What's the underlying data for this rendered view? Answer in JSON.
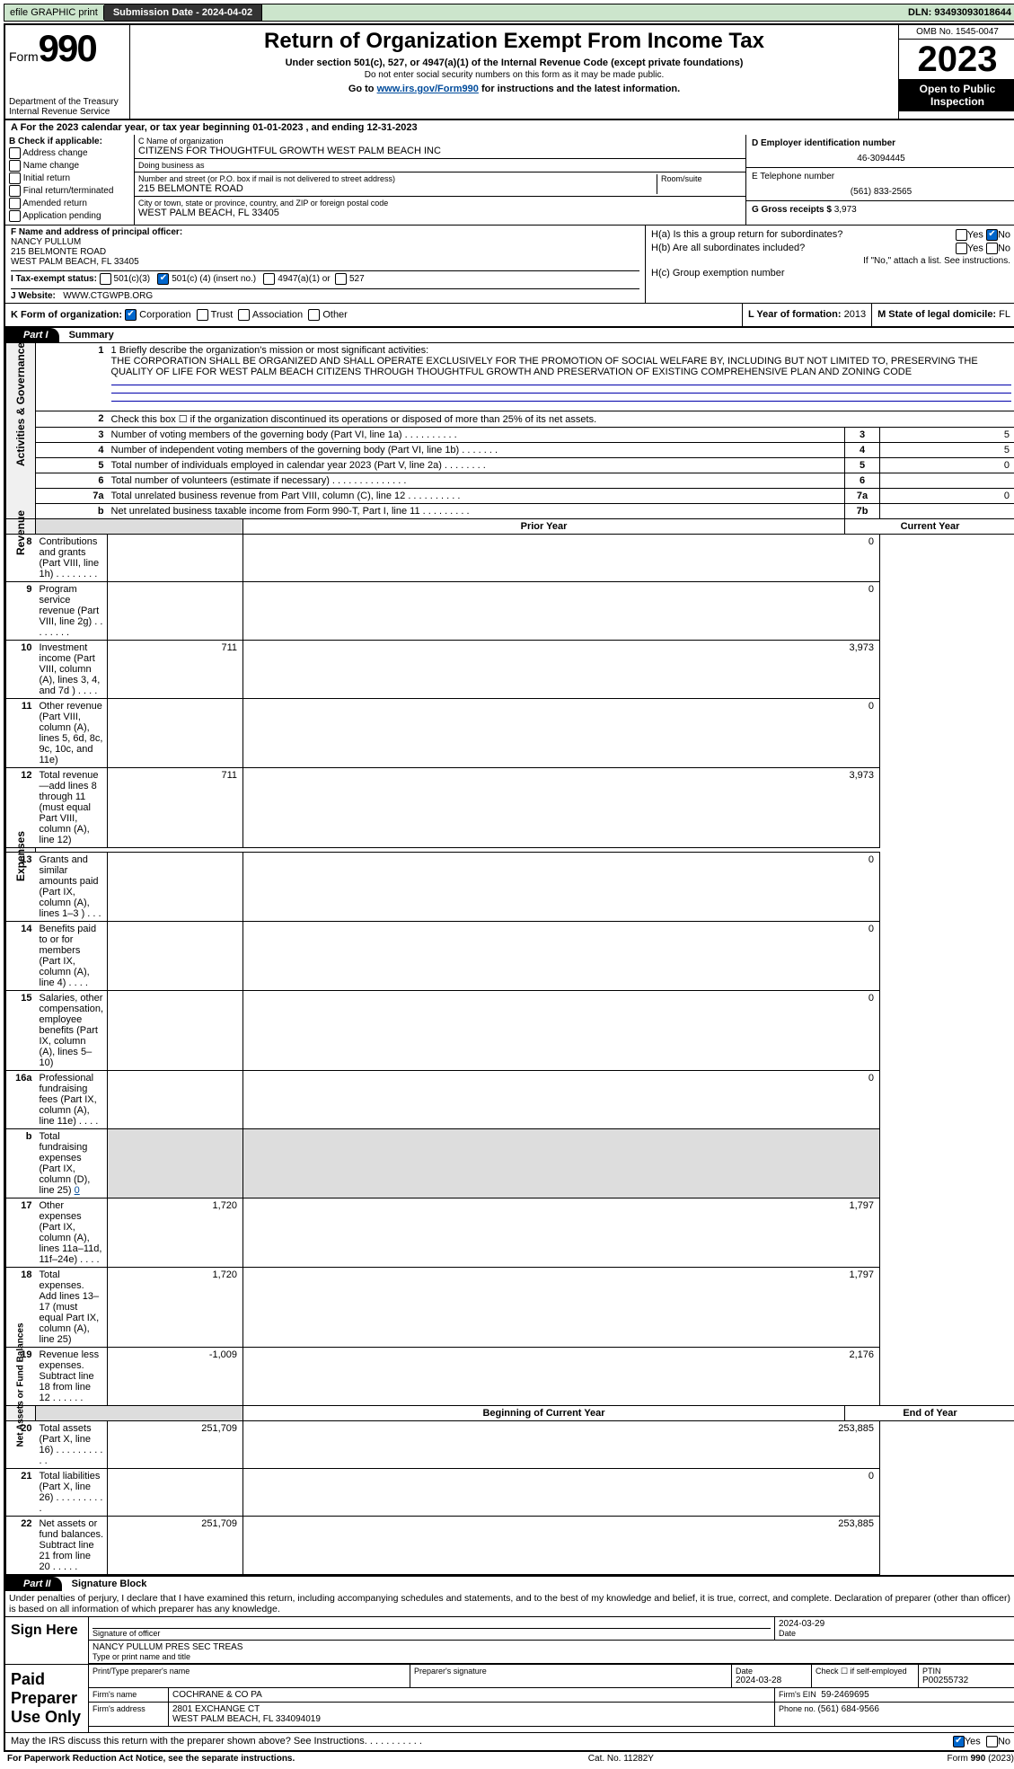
{
  "topbar": {
    "efile": "efile GRAPHIC print",
    "submission_label": "Submission Date - ",
    "submission_date": "2024-04-02",
    "dln_label": "DLN: ",
    "dln": "93493093018644"
  },
  "header": {
    "form_label": "Form",
    "form_num": "990",
    "dept": "Department of the Treasury Internal Revenue Service",
    "title": "Return of Organization Exempt From Income Tax",
    "sub1": "Under section 501(c), 527, or 4947(a)(1) of the Internal Revenue Code (except private foundations)",
    "sub2": "Do not enter social security numbers on this form as it may be made public.",
    "sub3_pre": "Go to ",
    "sub3_link": "www.irs.gov/Form990",
    "sub3_post": " for instructions and the latest information.",
    "omb": "OMB No. 1545-0047",
    "year": "2023",
    "open": "Open to Public Inspection"
  },
  "row_a": "A   For the 2023 calendar year, or tax year beginning 01-01-2023    , and ending 12-31-2023",
  "section_b": {
    "label": "B Check if applicable:",
    "items": [
      "Address change",
      "Name change",
      "Initial return",
      "Final return/terminated",
      "Amended return",
      "Application pending"
    ]
  },
  "section_c": {
    "name_label": "C Name of organization",
    "name": "CITIZENS FOR THOUGHTFUL GROWTH WEST PALM BEACH INC",
    "dba_label": "Doing business as",
    "dba": "",
    "street_label": "Number and street (or P.O. box if mail is not delivered to street address)",
    "street": "215 BELMONTE ROAD",
    "room_label": "Room/suite",
    "room": "",
    "city_label": "City or town, state or province, country, and ZIP or foreign postal code",
    "city": "WEST PALM BEACH, FL  33405"
  },
  "section_de": {
    "d_label": "D Employer identification number",
    "ein": "46-3094445",
    "e_label": "E Telephone number",
    "phone": "(561) 833-2565",
    "g_label": "G Gross receipts $ ",
    "gross": "3,973"
  },
  "section_f": {
    "label": "F  Name and address of principal officer:",
    "name": "NANCY PULLUM",
    "addr1": "215 BELMONTE ROAD",
    "addr2": "WEST PALM BEACH, FL  33405"
  },
  "section_h": {
    "ha": "H(a)  Is this a group return for subordinates?",
    "ha_yes": "Yes",
    "ha_no": "No",
    "hb": "H(b)  Are all subordinates included?",
    "hb_yes": "Yes",
    "hb_no": "No",
    "hb_note": "If \"No,\" attach a list. See instructions.",
    "hc": "H(c)  Group exemption number"
  },
  "row_i": {
    "label": "I    Tax-exempt status:",
    "opt1": "501(c)(3)",
    "opt2a": "501(c) (",
    "opt2b": "4",
    "opt2c": ") (insert no.)",
    "opt3": "4947(a)(1) or",
    "opt4": "527"
  },
  "row_j": {
    "label": "J    Website:",
    "val": "WWW.CTGWPB.ORG"
  },
  "row_k": {
    "label": "K Form of organization:",
    "opts": [
      "Corporation",
      "Trust",
      "Association",
      "Other"
    ]
  },
  "row_l": {
    "label": "L Year of formation: ",
    "val": "2013"
  },
  "row_m": {
    "label": "M State of legal domicile: ",
    "val": "FL"
  },
  "part1": {
    "hdr": "Part I",
    "title": "Summary",
    "l1_label": "1   Briefly describe the organization's mission or most significant activities:",
    "l1_text": "THE CORPORATION SHALL BE ORGANIZED AND SHALL OPERATE EXCLUSIVELY FOR THE PROMOTION OF SOCIAL WELFARE BY, INCLUDING BUT NOT LIMITED TO, PRESERVING THE QUALITY OF LIFE FOR WEST PALM BEACH CITIZENS THROUGH THOUGHTFUL GROWTH AND PRESERVATION OF EXISTING COMPREHENSIVE PLAN AND ZONING CODE",
    "side1": "Activities & Governance",
    "side2": "Revenue",
    "side3": "Expenses",
    "side4": "Net Assets or Fund Balances",
    "lines_simple": [
      {
        "n": "2",
        "desc": "Check this box ☐  if the organization discontinued its operations or disposed of more than 25% of its net assets."
      },
      {
        "n": "3",
        "desc": "Number of voting members of the governing body (Part VI, line 1a)   .    .    .    .    .    .    .    .    .    .",
        "box": "3",
        "val": "5"
      },
      {
        "n": "4",
        "desc": "Number of independent voting members of the governing body (Part VI, line 1b)  .    .    .    .    .    .    .",
        "box": "4",
        "val": "5"
      },
      {
        "n": "5",
        "desc": "Total number of individuals employed in calendar year 2023 (Part V, line 2a)   .    .    .    .    .    .    .    .",
        "box": "5",
        "val": "0"
      },
      {
        "n": "6",
        "desc": "Total number of volunteers (estimate if necessary)   .    .    .    .    .    .    .    .    .    .    .    .    .    .",
        "box": "6",
        "val": ""
      },
      {
        "n": "7a",
        "desc": "Total unrelated business revenue from Part VIII, column (C), line 12  .    .    .    .    .    .    .    .    .    .",
        "box": "7a",
        "val": "0"
      },
      {
        "n": "b",
        "desc": "Net unrelated business taxable income from Form 990-T, Part I, line 11  .    .    .    .    .    .    .    .    .",
        "box": "7b",
        "val": ""
      }
    ],
    "col_prior": "Prior Year",
    "col_current": "Current Year",
    "col_begin": "Beginning of Current Year",
    "col_end": "End of Year",
    "lines_2col": [
      {
        "n": "8",
        "desc": "Contributions and grants (Part VIII, line 1h)   .    .    .    .    .    .    .    .",
        "p": "",
        "c": "0"
      },
      {
        "n": "9",
        "desc": "Program service revenue (Part VIII, line 2g)  .    .    .    .    .    .    .    .",
        "p": "",
        "c": "0"
      },
      {
        "n": "10",
        "desc": "Investment income (Part VIII, column (A), lines 3, 4, and 7d )  .    .    .    .",
        "p": "711",
        "c": "3,973"
      },
      {
        "n": "11",
        "desc": "Other revenue (Part VIII, column (A), lines 5, 6d, 8c, 9c, 10c, and 11e)",
        "p": "",
        "c": "0"
      },
      {
        "n": "12",
        "desc": "Total revenue—add lines 8 through 11 (must equal Part VIII, column (A), line 12)",
        "p": "711",
        "c": "3,973"
      },
      {
        "n": "13",
        "desc": "Grants and similar amounts paid (Part IX, column (A), lines 1–3 )  .    .    .",
        "p": "",
        "c": "0"
      },
      {
        "n": "14",
        "desc": "Benefits paid to or for members (Part IX, column (A), line 4)  .    .    .    .",
        "p": "",
        "c": "0"
      },
      {
        "n": "15",
        "desc": "Salaries, other compensation, employee benefits (Part IX, column (A), lines 5–10)",
        "p": "",
        "c": "0"
      },
      {
        "n": "16a",
        "desc": "Professional fundraising fees (Part IX, column (A), line 11e)  .    .    .    .",
        "p": "",
        "c": "0"
      }
    ],
    "line16b_n": "b",
    "line16b": "Total fundraising expenses (Part IX, column (D), line 25) ",
    "line16b_val": "0",
    "lines_2col_b": [
      {
        "n": "17",
        "desc": "Other expenses (Part IX, column (A), lines 11a–11d, 11f–24e)  .    .    .    .",
        "p": "1,720",
        "c": "1,797"
      },
      {
        "n": "18",
        "desc": "Total expenses. Add lines 13–17 (must equal Part IX, column (A), line 25)",
        "p": "1,720",
        "c": "1,797"
      },
      {
        "n": "19",
        "desc": "Revenue less expenses. Subtract line 18 from line 12  .    .    .    .    .    .",
        "p": "-1,009",
        "c": "2,176"
      }
    ],
    "lines_bal": [
      {
        "n": "20",
        "desc": "Total assets (Part X, line 16)  .    .    .    .    .    .    .    .    .    .    .",
        "p": "251,709",
        "c": "253,885"
      },
      {
        "n": "21",
        "desc": "Total liabilities (Part X, line 26)  .    .    .    .    .    .    .    .    .    .",
        "p": "",
        "c": "0"
      },
      {
        "n": "22",
        "desc": "Net assets or fund balances. Subtract line 21 from line 20  .    .    .    .    .",
        "p": "251,709",
        "c": "253,885"
      }
    ]
  },
  "part2": {
    "hdr": "Part II",
    "title": "Signature Block",
    "declare": "Under penalties of perjury, I declare that I have examined this return, including accompanying schedules and statements, and to the best of my knowledge and belief, it is true, correct, and complete. Declaration of preparer (other than officer) is based on all information of which preparer has any knowledge.",
    "sign_here": "Sign Here",
    "sig_officer_label": "Signature of officer",
    "sig_date": "2024-03-29",
    "date_label": "Date",
    "sig_name": "NANCY PULLUM  PRES SEC TREAS",
    "sig_name_label": "Type or print name and title",
    "paid_prep": "Paid Preparer Use Only",
    "prep_name_label": "Print/Type preparer's name",
    "prep_name": "",
    "prep_sig_label": "Preparer's signature",
    "prep_date_label": "Date",
    "prep_date": "2024-03-28",
    "check_self": "Check ☐ if self-employed",
    "ptin_label": "PTIN",
    "ptin": "P00255732",
    "firm_name_label": "Firm's name",
    "firm_name": "COCHRANE & CO PA",
    "firm_ein_label": "Firm's EIN",
    "firm_ein": "59-2469695",
    "firm_addr_label": "Firm's address",
    "firm_addr1": "2801 EXCHANGE CT",
    "firm_addr2": "WEST PALM BEACH, FL  334094019",
    "phone_label": "Phone no. ",
    "phone": "(561) 684-9566",
    "discuss": "May the IRS discuss this return with the preparer shown above? See Instructions.   .    .    .    .    .    .    .    .    .    .",
    "discuss_yes": "Yes",
    "discuss_no": "No"
  },
  "footer": {
    "l": "For Paperwork Reduction Act Notice, see the separate instructions.",
    "m": "Cat. No. 11282Y",
    "r": "Form 990 (2023)"
  }
}
